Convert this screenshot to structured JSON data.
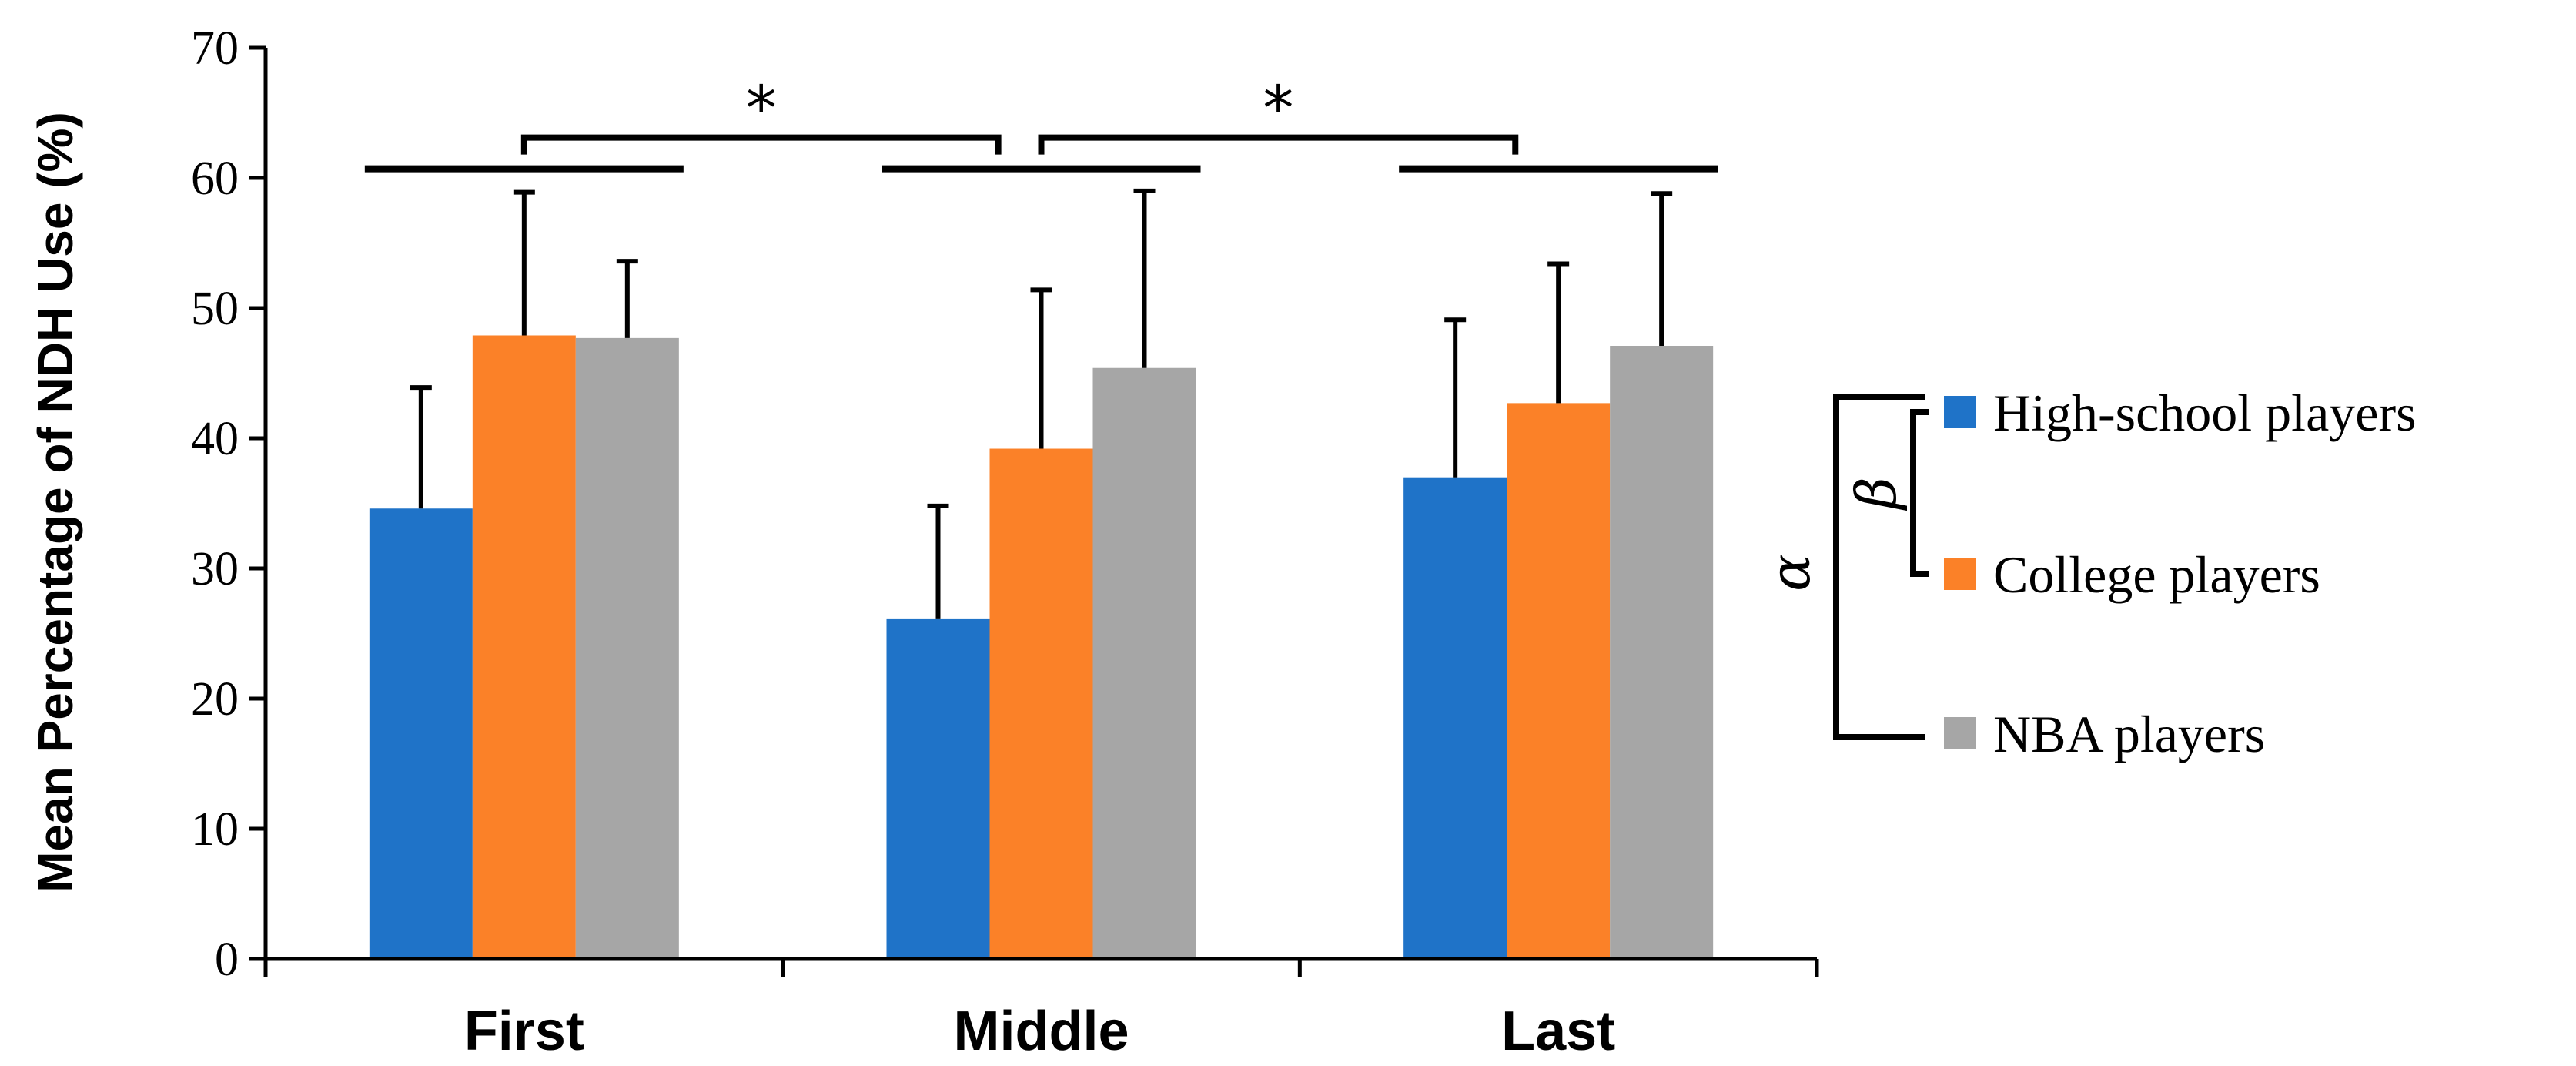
{
  "chart_data": {
    "type": "bar",
    "title": "",
    "xlabel": "",
    "ylabel": "Mean Percentage of NDH Use (%)",
    "ylim": [
      0,
      70
    ],
    "yticks": [
      "0",
      "10",
      "20",
      "30",
      "40",
      "50",
      "60",
      "70"
    ],
    "categories": [
      "First",
      "Middle",
      "Last"
    ],
    "series": [
      {
        "name": "High-school players",
        "color": "#1f73c8",
        "values": [
          34.6,
          26.1,
          37.0
        ],
        "errors": [
          9.3,
          8.7,
          12.1
        ]
      },
      {
        "name": "College players",
        "color": "#fb8128",
        "values": [
          47.9,
          39.2,
          42.7
        ],
        "errors": [
          11.0,
          12.2,
          10.7
        ]
      },
      {
        "name": "NBA players",
        "color": "#a6a6a6",
        "values": [
          47.7,
          45.4,
          47.1
        ],
        "errors": [
          5.9,
          13.6,
          11.7
        ]
      }
    ],
    "significance": [
      {
        "between": [
          "First",
          "Middle"
        ],
        "label": "*"
      },
      {
        "between": [
          "Middle",
          "Last"
        ],
        "label": "*"
      }
    ],
    "legend": {
      "position": "right",
      "groupings": [
        {
          "symbol": "α",
          "spans": [
            "High-school players",
            "NBA players"
          ]
        },
        {
          "symbol": "β",
          "spans": [
            "High-school players",
            "College players"
          ]
        }
      ]
    }
  }
}
